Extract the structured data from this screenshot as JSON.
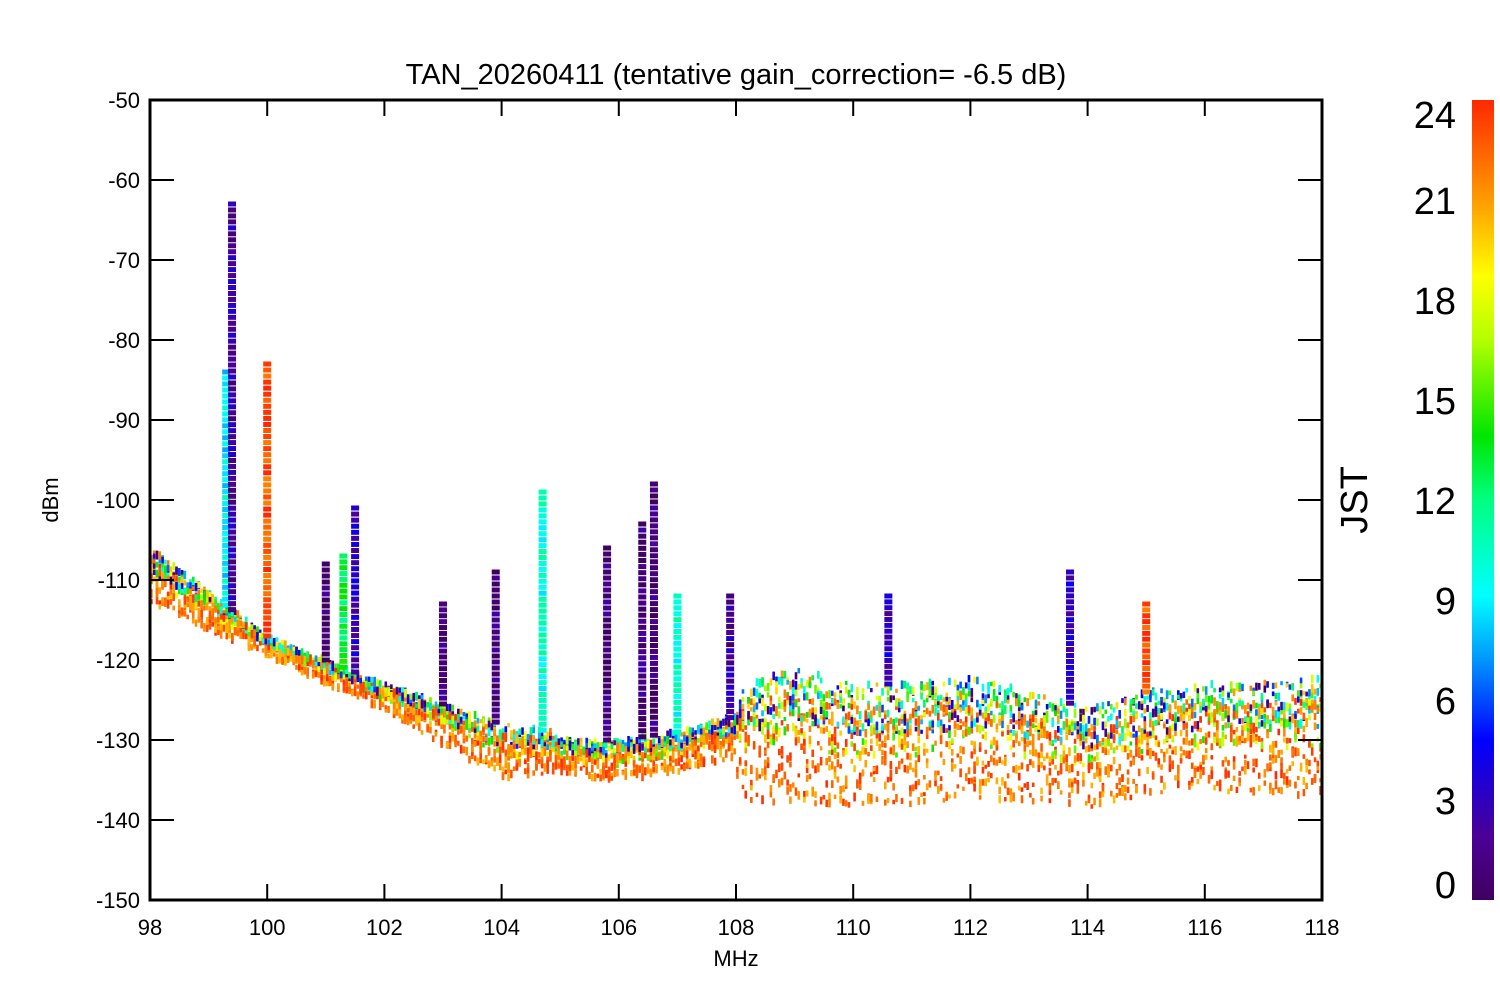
{
  "chart_data": {
    "type": "scatter",
    "title": "TAN_20260411 (tentative gain_correction= -6.5 dB)",
    "xlabel": "MHz",
    "ylabel": "dBm",
    "xlim": [
      98,
      118
    ],
    "ylim": [
      -150,
      -50
    ],
    "x_ticks": [
      "98",
      "100",
      "102",
      "104",
      "106",
      "108",
      "110",
      "112",
      "114",
      "116",
      "118"
    ],
    "y_ticks": [
      "-50",
      "-60",
      "-70",
      "-80",
      "-90",
      "-100",
      "-110",
      "-120",
      "-130",
      "-140",
      "-150"
    ],
    "colorbar": {
      "label": "JST",
      "range": [
        0,
        24
      ],
      "ticks": [
        "0",
        "3",
        "6",
        "9",
        "12",
        "15",
        "18",
        "21",
        "24"
      ]
    },
    "marker": "asterisk",
    "noise_floor": {
      "freq": [
        98,
        100,
        102,
        104,
        104.9,
        105,
        106,
        107,
        108,
        108.05,
        109,
        110,
        111,
        112,
        113,
        114,
        115,
        116,
        117,
        118
      ],
      "bottom": [
        -114,
        -120,
        -127,
        -136,
        -135,
        -135,
        -136,
        -135,
        -133,
        -140,
        -141,
        -141,
        -141,
        -140,
        -140,
        -141,
        -139,
        -139,
        -139,
        -140
      ],
      "top": [
        -106,
        -117,
        -123,
        -128,
        -129,
        -130,
        -130,
        -129,
        -127,
        -123,
        -121,
        -123,
        -123,
        -122,
        -124,
        -126,
        -124,
        -123,
        -123,
        -122
      ]
    },
    "spurs": [
      {
        "freq": 99.3,
        "peak": -84,
        "jst": 9
      },
      {
        "freq": 99.4,
        "peak": -63,
        "jst": 2
      },
      {
        "freq": 100.0,
        "peak": -83,
        "jst": 23
      },
      {
        "freq": 101.0,
        "peak": -108,
        "jst": 1
      },
      {
        "freq": 101.3,
        "peak": -107,
        "jst": 13
      },
      {
        "freq": 101.5,
        "peak": -101,
        "jst": 3
      },
      {
        "freq": 103.0,
        "peak": -113,
        "jst": 1
      },
      {
        "freq": 103.9,
        "peak": -109,
        "jst": 1
      },
      {
        "freq": 104.7,
        "peak": -99,
        "jst": 10
      },
      {
        "freq": 105.8,
        "peak": -106,
        "jst": 1
      },
      {
        "freq": 106.4,
        "peak": -103,
        "jst": 1
      },
      {
        "freq": 106.6,
        "peak": -98,
        "jst": 1
      },
      {
        "freq": 107.0,
        "peak": -112,
        "jst": 10
      },
      {
        "freq": 107.9,
        "peak": -112,
        "jst": 2
      },
      {
        "freq": 110.6,
        "peak": -112,
        "jst": 3
      },
      {
        "freq": 113.7,
        "peak": -109,
        "jst": 3
      },
      {
        "freq": 115.0,
        "peak": -113,
        "jst": 23
      }
    ]
  }
}
